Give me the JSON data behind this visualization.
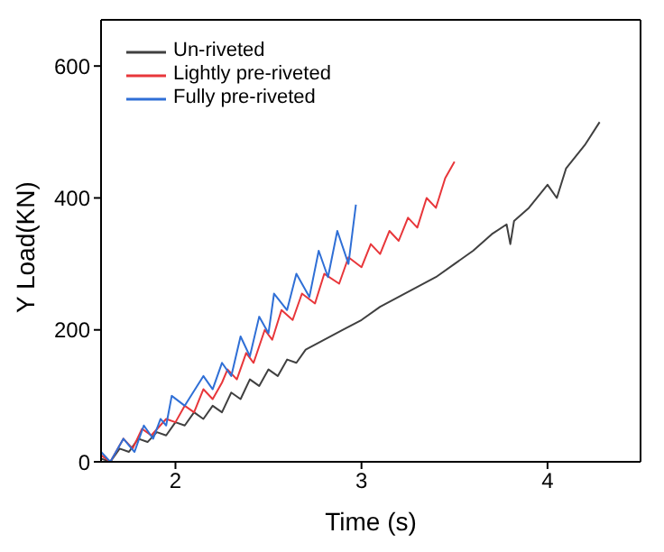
{
  "chart_data": {
    "type": "line",
    "xlabel": "Time (s)",
    "ylabel": "Y Load(KN)",
    "xlim": [
      1.6,
      4.5
    ],
    "ylim": [
      0,
      670
    ],
    "xticks": [
      2,
      3,
      4
    ],
    "yticks": [
      0,
      200,
      400,
      600
    ],
    "legend": "top left",
    "marker": "none",
    "line_style": "solid",
    "series": [
      {
        "name": "Un-riveted",
        "color": "#404040",
        "x": [
          1.6,
          1.65,
          1.7,
          1.75,
          1.8,
          1.85,
          1.9,
          1.95,
          2.0,
          2.05,
          2.1,
          2.15,
          2.2,
          2.25,
          2.3,
          2.35,
          2.4,
          2.45,
          2.5,
          2.55,
          2.6,
          2.65,
          2.7,
          2.8,
          2.9,
          3.0,
          3.1,
          3.2,
          3.3,
          3.4,
          3.5,
          3.6,
          3.7,
          3.78,
          3.8,
          3.82,
          3.9,
          4.0,
          4.05,
          4.1,
          4.2,
          4.28
        ],
        "values": [
          5,
          0,
          20,
          15,
          35,
          30,
          45,
          40,
          60,
          55,
          75,
          65,
          85,
          75,
          105,
          95,
          125,
          115,
          140,
          130,
          155,
          150,
          170,
          185,
          200,
          215,
          235,
          250,
          265,
          280,
          300,
          320,
          345,
          360,
          330,
          365,
          385,
          420,
          400,
          445,
          480,
          515
        ]
      },
      {
        "name": "Lightly pre-riveted",
        "color": "#e8363a",
        "x": [
          1.6,
          1.65,
          1.72,
          1.77,
          1.82,
          1.87,
          1.95,
          2.0,
          2.05,
          2.1,
          2.15,
          2.2,
          2.25,
          2.28,
          2.33,
          2.38,
          2.42,
          2.48,
          2.52,
          2.57,
          2.63,
          2.68,
          2.75,
          2.8,
          2.88,
          2.93,
          3.0,
          3.05,
          3.1,
          3.15,
          3.2,
          3.25,
          3.3,
          3.35,
          3.4,
          3.45,
          3.5
        ],
        "values": [
          10,
          0,
          35,
          20,
          50,
          40,
          65,
          60,
          85,
          75,
          110,
          95,
          120,
          140,
          125,
          165,
          150,
          200,
          185,
          230,
          215,
          255,
          240,
          285,
          270,
          310,
          295,
          330,
          315,
          350,
          335,
          370,
          355,
          400,
          385,
          430,
          455
        ]
      },
      {
        "name": "Fully pre-riveted",
        "color": "#2f6fd6",
        "x": [
          1.6,
          1.65,
          1.72,
          1.78,
          1.83,
          1.88,
          1.92,
          1.95,
          1.98,
          2.05,
          2.15,
          2.2,
          2.25,
          2.3,
          2.35,
          2.4,
          2.45,
          2.5,
          2.53,
          2.6,
          2.65,
          2.72,
          2.77,
          2.82,
          2.87,
          2.93,
          2.97
        ],
        "values": [
          15,
          0,
          35,
          15,
          55,
          35,
          65,
          55,
          100,
          85,
          130,
          110,
          150,
          130,
          190,
          160,
          220,
          195,
          255,
          230,
          285,
          250,
          320,
          280,
          350,
          300,
          390
        ]
      }
    ]
  }
}
